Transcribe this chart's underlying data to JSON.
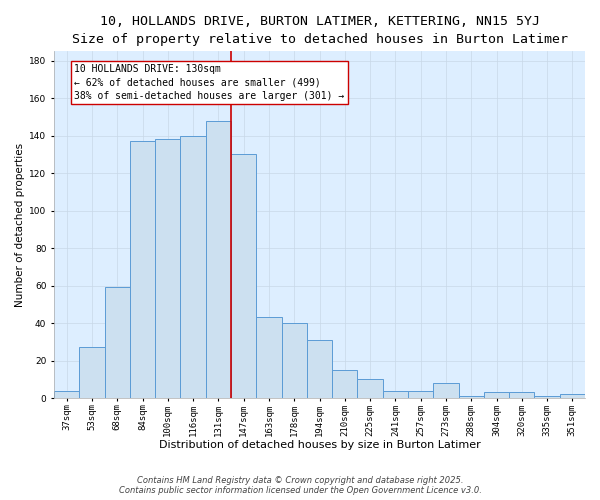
{
  "title1": "10, HOLLANDS DRIVE, BURTON LATIMER, KETTERING, NN15 5YJ",
  "title2": "Size of property relative to detached houses in Burton Latimer",
  "xlabel": "Distribution of detached houses by size in Burton Latimer",
  "ylabel": "Number of detached properties",
  "categories": [
    "37sqm",
    "53sqm",
    "68sqm",
    "84sqm",
    "100sqm",
    "116sqm",
    "131sqm",
    "147sqm",
    "163sqm",
    "178sqm",
    "194sqm",
    "210sqm",
    "225sqm",
    "241sqm",
    "257sqm",
    "273sqm",
    "288sqm",
    "304sqm",
    "320sqm",
    "335sqm",
    "351sqm"
  ],
  "values": [
    4,
    27,
    59,
    137,
    138,
    140,
    148,
    130,
    43,
    40,
    31,
    15,
    10,
    4,
    4,
    8,
    1,
    3,
    3,
    1,
    2
  ],
  "bar_color": "#cce0f0",
  "bar_edge_color": "#5b9bd5",
  "vline_x_index": 6,
  "vline_color": "#cc0000",
  "annotation_line1": "10 HOLLANDS DRIVE: 130sqm",
  "annotation_line2": "← 62% of detached houses are smaller (499)",
  "annotation_line3": "38% of semi-detached houses are larger (301) →",
  "annotation_box_color": "#ffffff",
  "annotation_box_edge_color": "#cc0000",
  "grid_color": "#c8d8e8",
  "background_color": "#ddeeff",
  "ylim": [
    0,
    185
  ],
  "yticks": [
    0,
    20,
    40,
    60,
    80,
    100,
    120,
    140,
    160,
    180
  ],
  "footer1": "Contains HM Land Registry data © Crown copyright and database right 2025.",
  "footer2": "Contains public sector information licensed under the Open Government Licence v3.0.",
  "title1_fontsize": 9.5,
  "title2_fontsize": 8.5,
  "xlabel_fontsize": 8,
  "ylabel_fontsize": 7.5,
  "tick_fontsize": 6.5,
  "annotation_fontsize": 7,
  "footer_fontsize": 6
}
